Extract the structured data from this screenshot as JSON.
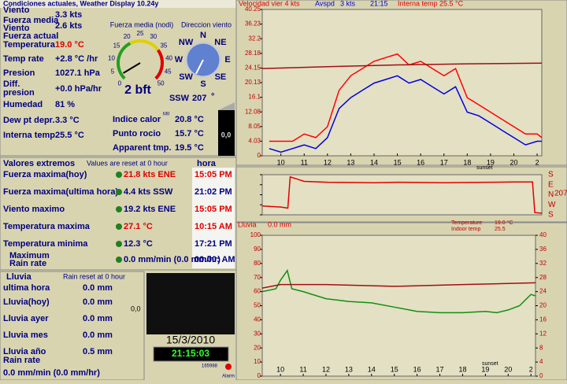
{
  "current": {
    "title": "Condiciones actuales, Weather Display 10.24y",
    "rows": [
      {
        "label": [
          "Viento"
        ],
        "value": "3.3 kts"
      },
      {
        "label": [
          "Fuerza media",
          "Viento"
        ],
        "value": "2.6 kts"
      },
      {
        "label": [
          "Fuerza actual"
        ]
      },
      {
        "label": [
          "Temperatura"
        ],
        "value": "19.0 °C",
        "color": "#e00000"
      },
      {
        "label": [
          "Temp rate"
        ],
        "value": "+2.8 °C /hr"
      },
      {
        "label": [
          "Presion"
        ],
        "value": "1027.1 hPa"
      },
      {
        "label": [
          "Diff.",
          "presion"
        ],
        "value": "+0.0 hPa/hr"
      },
      {
        "label": [
          "Humedad"
        ],
        "value": "81 %"
      },
      {
        "label": [
          "Dew pt depr."
        ],
        "value": "3.3 °C"
      },
      {
        "label": [
          "Interna temp."
        ],
        "value": "25.5 °C"
      }
    ],
    "gauge": {
      "title": "Fuerza media (nodi)",
      "ticks": [
        0,
        5,
        10,
        15,
        20,
        25,
        30,
        35,
        40,
        45,
        50
      ],
      "value": 2.6,
      "bft": "2 bft"
    },
    "compass": {
      "title": "Direccion viento",
      "points": [
        "N",
        "NE",
        "E",
        "SE",
        "S",
        "SW",
        "W",
        "NW"
      ],
      "direction": "SSW",
      "degrees": 207,
      "unit": "°"
    },
    "derived": [
      {
        "label": "Indice calor",
        "value": "20.8 °C"
      },
      {
        "label": "Punto rocio",
        "value": "15.7 °C"
      },
      {
        "label": "Apparent tmp.",
        "value": "19.5 °C"
      }
    ],
    "mini": "MII",
    "rain_bar": "0,0"
  },
  "extremes": {
    "title": "Valores extremos",
    "note": "Values are reset at 0 hour",
    "time_header": "hora",
    "rows": [
      {
        "label": [
          "Fuerza maxima(hoy)"
        ],
        "value": "21.8 kts ENE",
        "value_color": "#e00000",
        "time": "15:05 PM",
        "time_color": "#e00000"
      },
      {
        "label": [
          "Fuerza maxima(ultima hora)"
        ],
        "value": "4.4 kts SSW",
        "time": "21:02 PM"
      },
      {
        "label": [
          "Viento maximo"
        ],
        "value": "19.2 kts ENE",
        "time": "15:05 PM",
        "time_color": "#e00000"
      },
      {
        "label": [
          "Temperatura maxima"
        ],
        "value": "27.1 °C",
        "value_color": "#e00000",
        "time": "10:15 AM",
        "time_color": "#e00000"
      },
      {
        "label": [
          "Temperatura minima"
        ],
        "value": "12.3 °C",
        "time": "17:21 PM"
      },
      {
        "label": [
          "Maximum",
          "Rain rate"
        ],
        "value": "0.0 mm/min (0.0 mm/hr)",
        "time": "00:00: AM"
      }
    ]
  },
  "rain": {
    "title": "Lluvia",
    "note": "Rain reset at 0 hour",
    "rows": [
      {
        "label": "ultima hora",
        "value": "0.0 mm"
      },
      {
        "label": "Lluvia(hoy)",
        "value": "0.0 mm"
      },
      {
        "label": "Lluvia ayer",
        "value": "0.0 mm"
      },
      {
        "label": "Lluvia mes",
        "value": "0.0 mm"
      },
      {
        "label": "Lluvia año",
        "value": "0.5 mm"
      }
    ],
    "rate_label": "Rain rate",
    "rate": "0.0 mm/min (0.0 mm/hr)"
  },
  "camera": {
    "label": "0,0",
    "date": "15/3/2010",
    "time": "21:15:03",
    "counter": "165988",
    "alarm": "Alarm"
  },
  "chart_data": [
    {
      "type": "line",
      "header": [
        {
          "text": "Velocidad vier 4 kts",
          "color": "#e00000"
        },
        {
          "text": "Avspd",
          "color": "#0000e0"
        },
        {
          "text": "3 kts",
          "color": "#0000e0"
        },
        {
          "text": "21:15",
          "color": "#0000e0"
        },
        {
          "text": "Interna temp 25.5 °C",
          "color": "#e00000"
        }
      ],
      "xlim": [
        9.2,
        21.2
      ],
      "xticks": [
        10,
        11,
        12,
        13,
        14,
        15,
        16,
        17,
        18,
        19,
        20,
        {
          "value": 21,
          "label": "2"
        }
      ],
      "ylim": [
        0,
        40.25
      ],
      "yticks": [
        0,
        4.03,
        8.05,
        12.08,
        16.1,
        20.13,
        24.15,
        28.18,
        32.2,
        36.23,
        40.25
      ],
      "annotation": "sunset",
      "series": [
        {
          "color": "#ff0000",
          "x": [
            9.5,
            10,
            10.5,
            11,
            11.5,
            12,
            12.5,
            13,
            13.5,
            14,
            14.5,
            15,
            15.5,
            16,
            16.5,
            17,
            17.5,
            18,
            18.5,
            19,
            19.5,
            20,
            20.5,
            21,
            21.2
          ],
          "values": [
            4,
            4,
            4,
            6,
            5,
            8,
            18,
            22,
            24,
            26,
            27,
            28,
            25,
            26,
            24,
            22,
            24,
            16,
            14,
            12,
            10,
            8,
            6,
            6,
            5
          ]
        },
        {
          "color": "#0000e0",
          "x": [
            9.5,
            10,
            10.5,
            11,
            11.5,
            12,
            12.5,
            13,
            13.5,
            14,
            14.5,
            15,
            15.5,
            16,
            16.5,
            17,
            17.5,
            18,
            18.5,
            19,
            19.5,
            20,
            20.5,
            21,
            21.2
          ],
          "values": [
            2,
            1,
            2,
            3,
            2,
            5,
            13,
            16,
            18,
            20,
            21,
            22,
            20,
            21,
            19,
            17,
            19,
            12,
            11,
            9,
            7,
            5,
            3,
            4,
            4
          ]
        },
        {
          "color": "#a01010",
          "x": [
            9.2,
            12,
            15,
            18,
            21.2
          ],
          "values": [
            24,
            24.5,
            25,
            25.3,
            25.5
          ]
        }
      ]
    },
    {
      "type": "line",
      "xlim": [
        9.2,
        21.2
      ],
      "ylim": [
        -180,
        180
      ],
      "yticks": [
        {
          "value": 180,
          "label": "S"
        },
        {
          "value": 90,
          "label": "E"
        },
        {
          "value": 0,
          "label": "N"
        },
        {
          "value": -90,
          "label": "W"
        },
        {
          "value": -180,
          "label": "S"
        }
      ],
      "current": "207",
      "notes": [
        {
          "text": "Temperature",
          "value": "19.0 °C"
        },
        {
          "text": "Indoor temp",
          "value": "25.5"
        }
      ],
      "series": [
        {
          "color": "#e00000",
          "x": [
            9.2,
            10,
            10.3,
            10.4,
            11,
            12,
            13,
            14,
            15,
            16,
            17,
            18,
            19,
            20,
            20.8,
            20.9,
            21.2
          ],
          "values": [
            -100,
            -110,
            -120,
            160,
            120,
            112,
            110,
            108,
            112,
            110,
            108,
            110,
            112,
            114,
            115,
            -160,
            -165
          ]
        }
      ]
    },
    {
      "type": "line",
      "header": [
        {
          "text": "Lluvia",
          "color": "#e00000"
        },
        {
          "text": "0.0 mm",
          "color": "#e00000"
        }
      ],
      "xlim": [
        9.2,
        21.2
      ],
      "xticks": [
        10,
        11,
        12,
        13,
        14,
        15,
        16,
        17,
        18,
        19,
        20,
        {
          "value": 21,
          "label": "2"
        }
      ],
      "ylim": [
        0,
        100
      ],
      "yticks": [
        0,
        10,
        20,
        30,
        40,
        50,
        60,
        70,
        80,
        90,
        100
      ],
      "y2lim": [
        0,
        40
      ],
      "y2ticks": [
        0,
        4,
        8,
        12,
        16,
        20,
        24,
        28,
        32,
        36,
        40
      ],
      "annotation": "sunset",
      "series": [
        {
          "color": "#109010",
          "x": [
            9.2,
            9.8,
            10,
            10.3,
            10.5,
            11,
            12,
            13,
            14,
            15,
            16,
            17,
            18,
            19,
            19.5,
            20,
            20.5,
            21,
            21.2
          ],
          "values": [
            60,
            62,
            68,
            75,
            62,
            60,
            55,
            53,
            52,
            49,
            46,
            45,
            45,
            46,
            45,
            47,
            50,
            58,
            57
          ]
        },
        {
          "color": "#a01010",
          "axis": "y2",
          "x": [
            9.2,
            10,
            12,
            15,
            18,
            21.2
          ],
          "values": [
            25,
            26,
            26,
            25.5,
            26,
            26.5
          ]
        }
      ]
    }
  ]
}
